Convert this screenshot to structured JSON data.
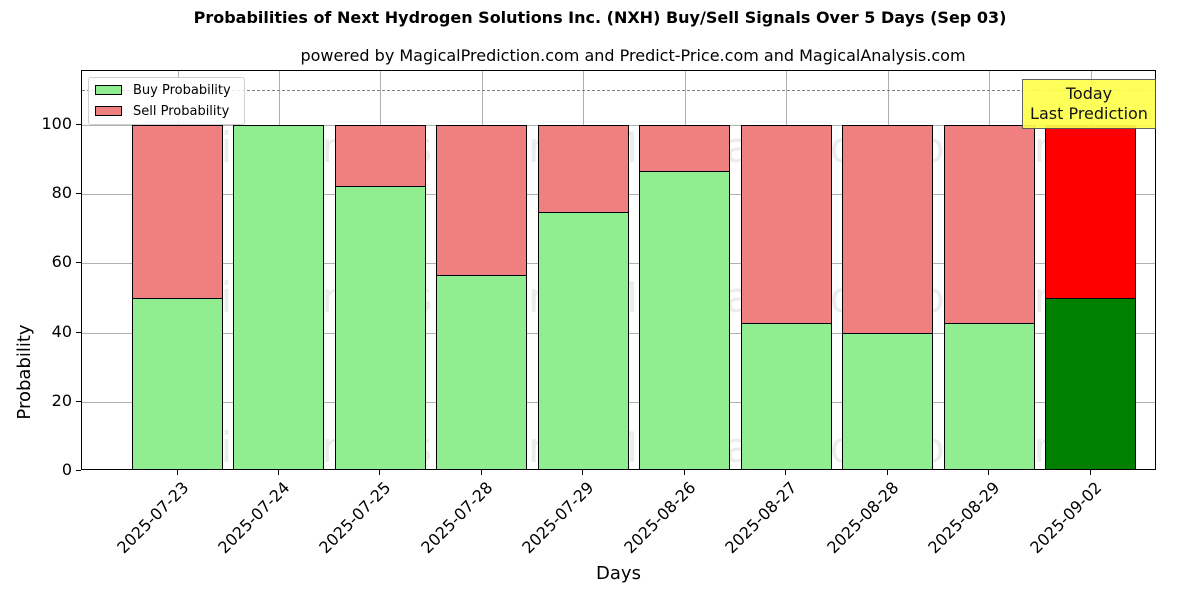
{
  "title": "Probabilities of Next Hydrogen Solutions Inc. (NXH) Buy/Sell Signals Over 5 Days (Sep 03)",
  "subtitle": "powered by MagicalPrediction.com and Predict-Price.com and MagicalAnalysis.com",
  "legend": {
    "buy_label": "Buy Probability",
    "sell_label": "Sell Probability"
  },
  "annotation": {
    "line1": "Today",
    "line2": "Last Prediction"
  },
  "watermarks": [
    "MagicalAnalysis.com",
    "MagicalPrediction.com",
    "MagicalAnalysis.com",
    "MagicalPrediction.com",
    "MagicalAnalysis.com",
    "MagicalPrediction.com"
  ],
  "colors": {
    "buy": "#90ee90",
    "sell": "#f08080",
    "buy_today": "#008000",
    "sell_today": "#ff0000",
    "annotation_bg": "#ffff4d"
  },
  "chart_data": {
    "type": "bar",
    "stacked": true,
    "title": "Probabilities of Next Hydrogen Solutions Inc. (NXH) Buy/Sell Signals Over 5 Days (Sep 03)",
    "subtitle": "powered by MagicalPrediction.com and Predict-Price.com and MagicalAnalysis.com",
    "xlabel": "Days",
    "ylabel": "Probability",
    "ylim": [
      0,
      115
    ],
    "yticks": [
      0,
      20,
      40,
      60,
      80,
      100
    ],
    "reference_line": 110,
    "grid": true,
    "legend_position": "upper left",
    "categories": [
      "2025-07-23",
      "2025-07-24",
      "2025-07-25",
      "2025-07-28",
      "2025-07-29",
      "2025-08-26",
      "2025-08-27",
      "2025-08-28",
      "2025-08-29",
      "2025-09-02"
    ],
    "series": [
      {
        "name": "Buy Probability",
        "values": [
          50.0,
          100.0,
          82.5,
          56.6,
          75.0,
          86.8,
          42.8,
          39.8,
          42.8,
          50.0
        ]
      },
      {
        "name": "Sell Probability",
        "values": [
          50.0,
          0.0,
          17.5,
          43.4,
          25.0,
          13.2,
          57.2,
          60.2,
          57.2,
          50.0
        ]
      }
    ],
    "highlight_index": 9,
    "annotations": [
      "Today\nLast Prediction"
    ]
  }
}
